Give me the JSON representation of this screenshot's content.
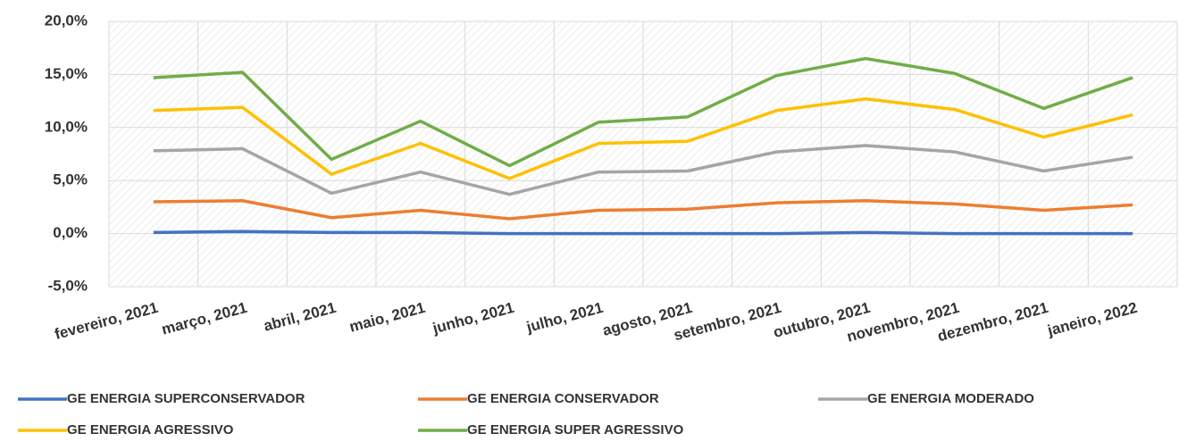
{
  "chart_data": {
    "type": "line",
    "categories": [
      "fevereiro, 2021",
      "março, 2021",
      "abril, 2021",
      "maio, 2021",
      "junho, 2021",
      "julho, 2021",
      "agosto, 2021",
      "setembro, 2021",
      "outubro, 2021",
      "novembro, 2021",
      "dezembro, 2021",
      "janeiro, 2022"
    ],
    "series": [
      {
        "name": "GE ENERGIA SUPERCONSERVADOR",
        "color": "#4472c4",
        "values": [
          0.1,
          0.2,
          0.1,
          0.1,
          0.0,
          0.0,
          0.0,
          0.0,
          0.1,
          0.0,
          0.0,
          0.0
        ]
      },
      {
        "name": "GE ENERGIA CONSERVADOR",
        "color": "#ed7d31",
        "values": [
          3.0,
          3.1,
          1.5,
          2.2,
          1.4,
          2.2,
          2.3,
          2.9,
          3.1,
          2.8,
          2.2,
          2.7
        ]
      },
      {
        "name": "GE ENERGIA MODERADO",
        "color": "#a5a5a5",
        "values": [
          7.8,
          8.0,
          3.8,
          5.8,
          3.7,
          5.8,
          5.9,
          7.7,
          8.3,
          7.7,
          5.9,
          7.2
        ]
      },
      {
        "name": "GE ENERGIA AGRESSIVO",
        "color": "#ffc000",
        "values": [
          11.6,
          11.9,
          5.6,
          8.5,
          5.2,
          8.5,
          8.7,
          11.6,
          12.7,
          11.7,
          9.1,
          11.2
        ]
      },
      {
        "name": "GE ENERGIA SUPER AGRESSIVO",
        "color": "#70ad47",
        "values": [
          14.7,
          15.2,
          7.0,
          10.6,
          6.4,
          10.5,
          11.0,
          14.9,
          16.5,
          15.1,
          11.8,
          14.7
        ]
      }
    ],
    "ylim": [
      -5,
      20
    ],
    "yticks": [
      {
        "value": -5,
        "label": "-5,0%"
      },
      {
        "value": 0,
        "label": "0,0%"
      },
      {
        "value": 5,
        "label": "5,0%"
      },
      {
        "value": 10,
        "label": "10,0%"
      },
      {
        "value": 15,
        "label": "15,0%"
      },
      {
        "value": 20,
        "label": "20,0%"
      }
    ],
    "grid": true,
    "legend": "bottom"
  }
}
